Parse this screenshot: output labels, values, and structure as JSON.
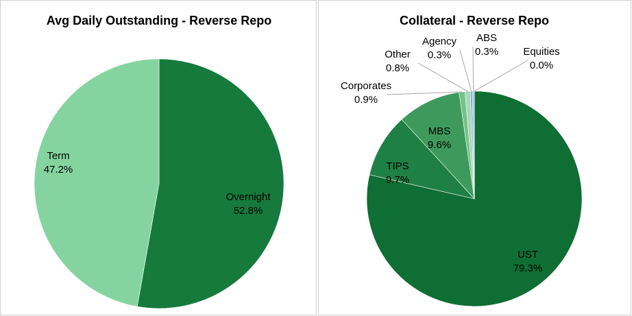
{
  "chart_data": [
    {
      "type": "pie",
      "title": "Avg Daily Outstanding - Reverse Repo",
      "categories": [
        "Overnight",
        "Term"
      ],
      "values": [
        52.8,
        47.2
      ],
      "value_labels": [
        "52.8%",
        "47.2%"
      ],
      "colors": [
        "#157a3c",
        "#85d4a0"
      ]
    },
    {
      "type": "pie",
      "title": "Collateral - Reverse Repo",
      "categories": [
        "UST",
        "TIPS",
        "MBS",
        "Corporates",
        "Other",
        "Agency",
        "ABS",
        "Equities"
      ],
      "values": [
        79.3,
        9.7,
        9.6,
        0.9,
        0.8,
        0.3,
        0.3,
        0.0
      ],
      "value_labels": [
        "79.3%",
        "9.7%",
        "9.6%",
        "0.9%",
        "0.8%",
        "0.3%",
        "0.3%",
        "0.0%"
      ],
      "colors": [
        "#0f6e33",
        "#1f8045",
        "#3e9a5c",
        "#74c28d",
        "#a6d9b4",
        "#7eaed6",
        "#9cc2e2",
        "#bcd5ec"
      ]
    }
  ]
}
